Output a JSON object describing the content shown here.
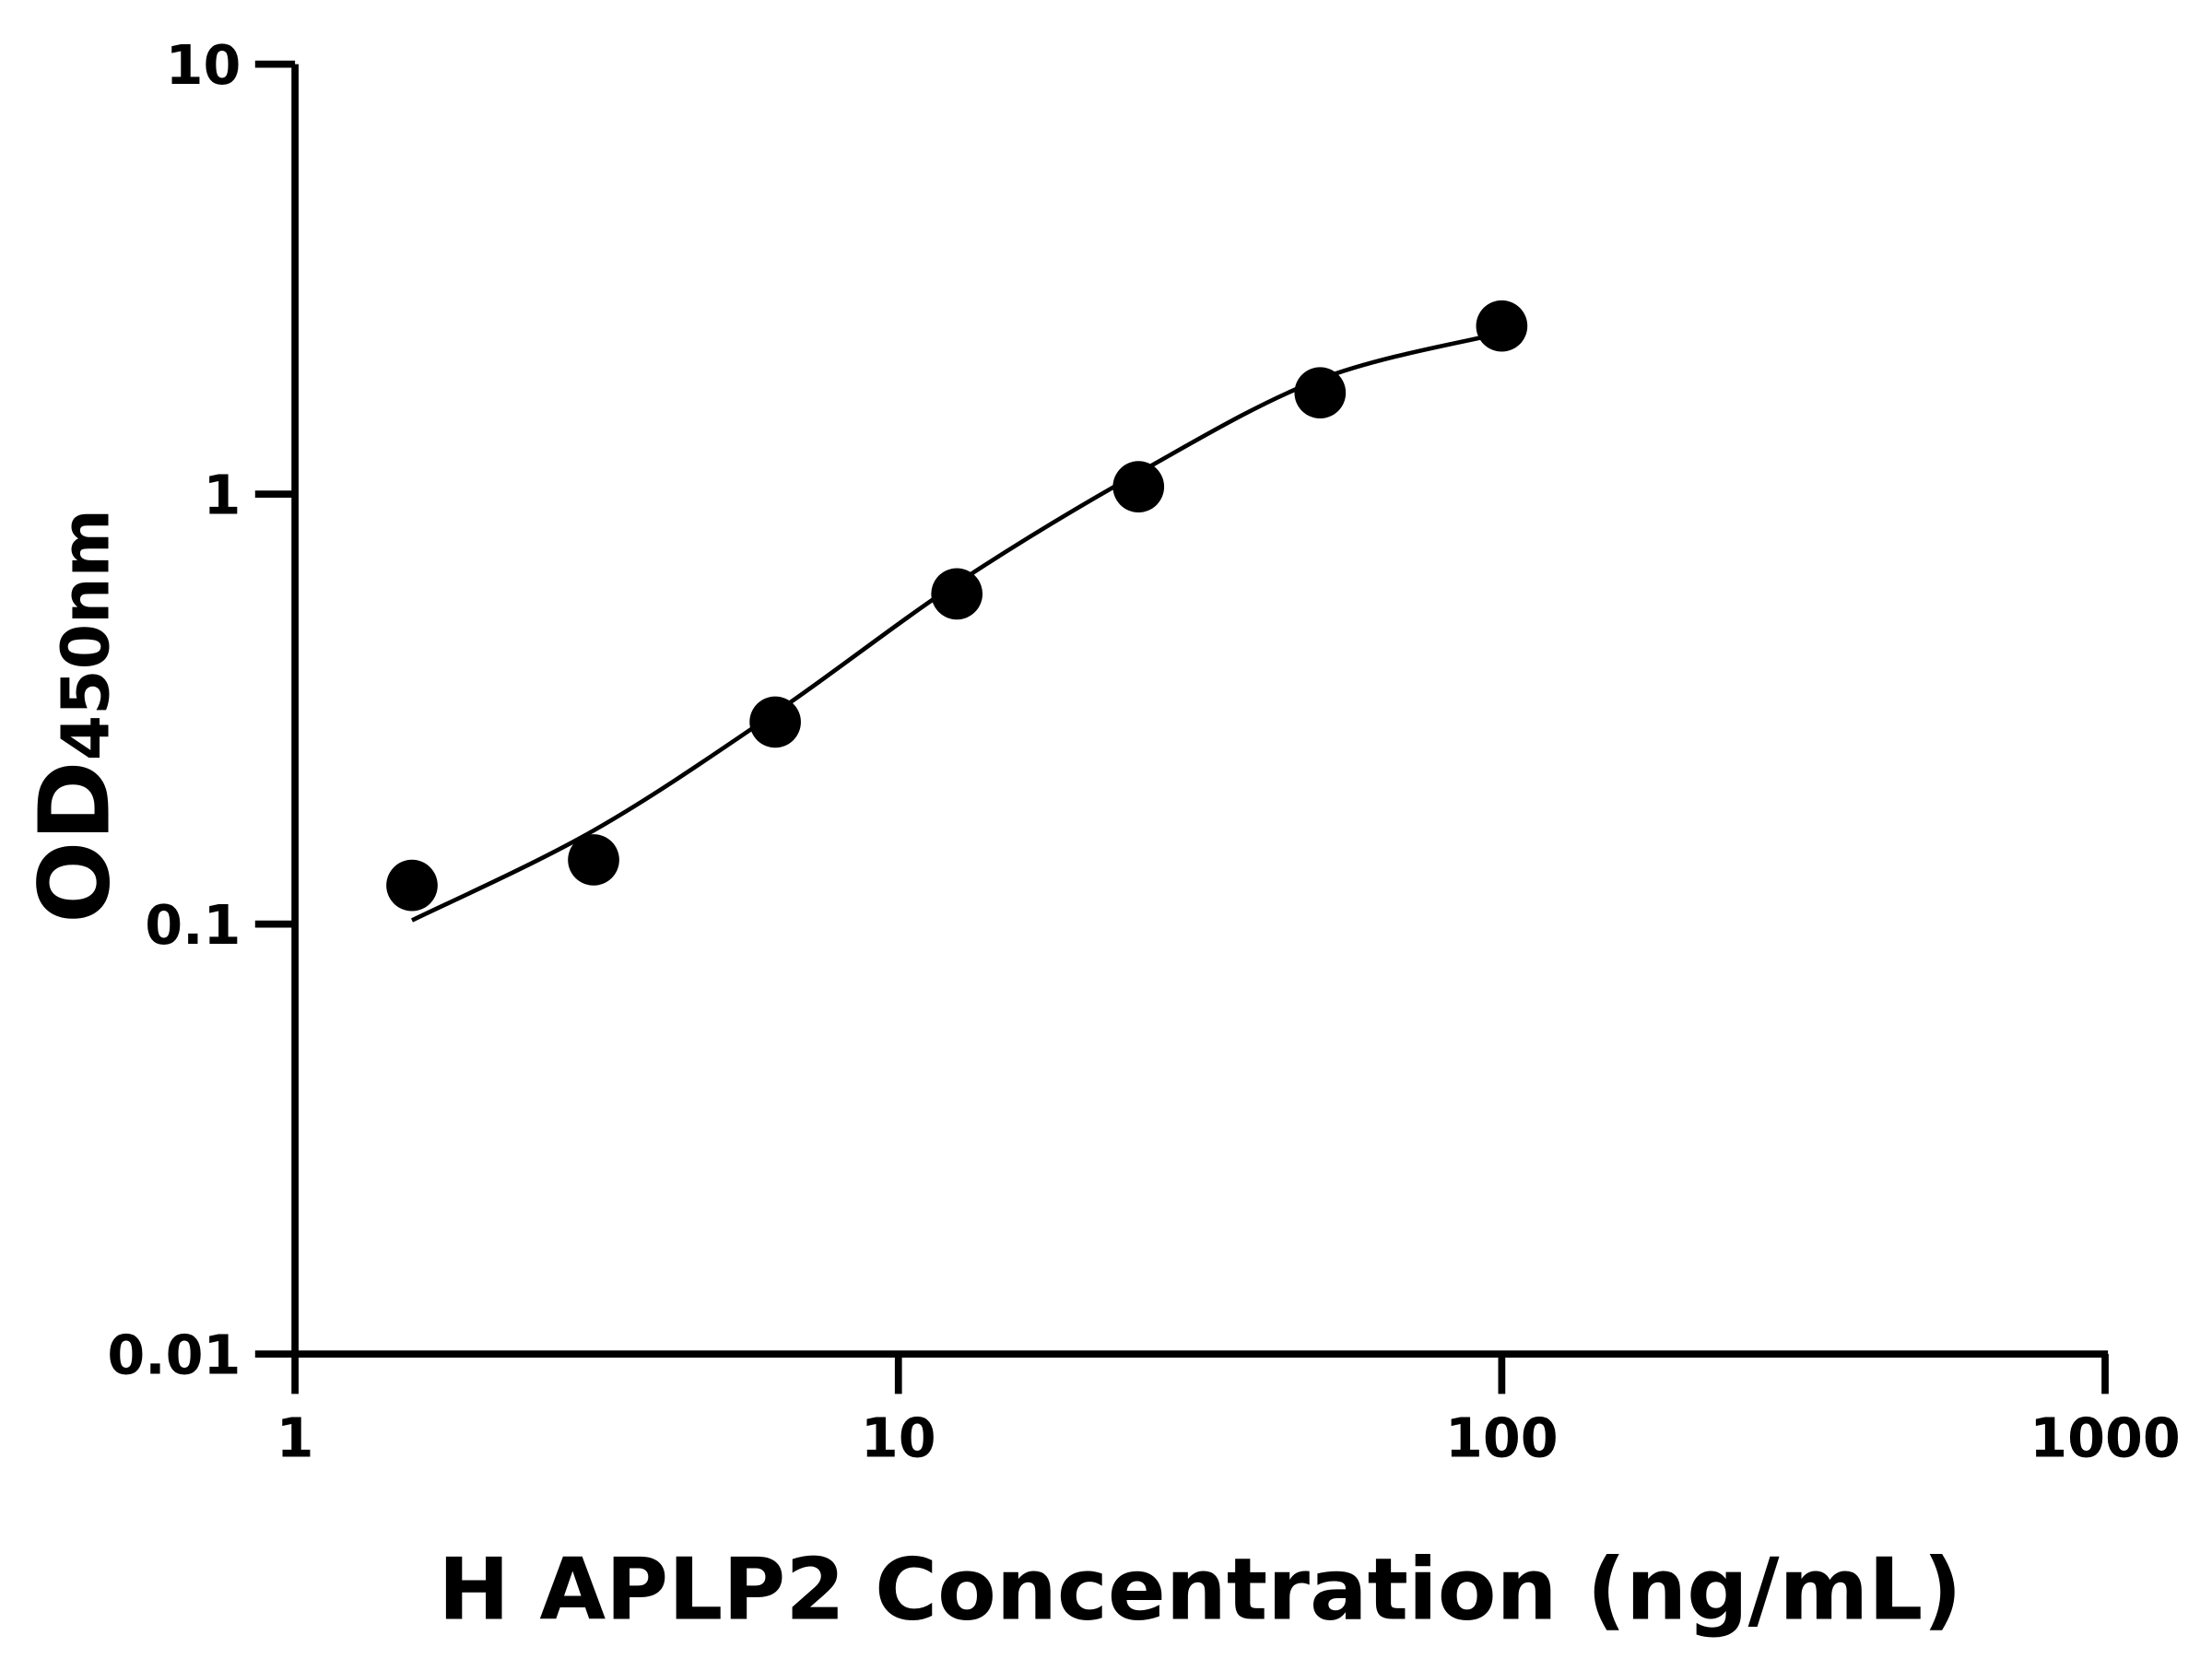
{
  "chart_data": {
    "type": "scatter",
    "title": "",
    "xlabel": "H APLP2 Concentration (ng/mL)",
    "ylabel_main": "OD",
    "ylabel_sub": "450nm",
    "x_scale": "log",
    "y_scale": "log",
    "xlim": [
      1,
      1000
    ],
    "ylim": [
      0.01,
      10
    ],
    "x_ticks": [
      1,
      10,
      100,
      1000
    ],
    "x_tick_labels": [
      "1",
      "10",
      "100",
      "1000"
    ],
    "y_ticks": [
      0.01,
      0.1,
      1,
      10
    ],
    "y_tick_labels": [
      "0.01",
      "0.1",
      "1",
      "10"
    ],
    "grid": false,
    "legend": "none",
    "points": {
      "x": [
        1.5625,
        3.125,
        6.25,
        12.5,
        25,
        50,
        100
      ],
      "y": [
        0.123,
        0.141,
        0.295,
        0.586,
        1.04,
        1.72,
        2.46
      ]
    },
    "fit_curve": {
      "x": [
        1.5625,
        3.125,
        6.25,
        12.5,
        25,
        50,
        100
      ],
      "y": [
        0.102,
        0.165,
        0.31,
        0.62,
        1.12,
        1.85,
        2.37
      ]
    },
    "color": "#000000"
  }
}
